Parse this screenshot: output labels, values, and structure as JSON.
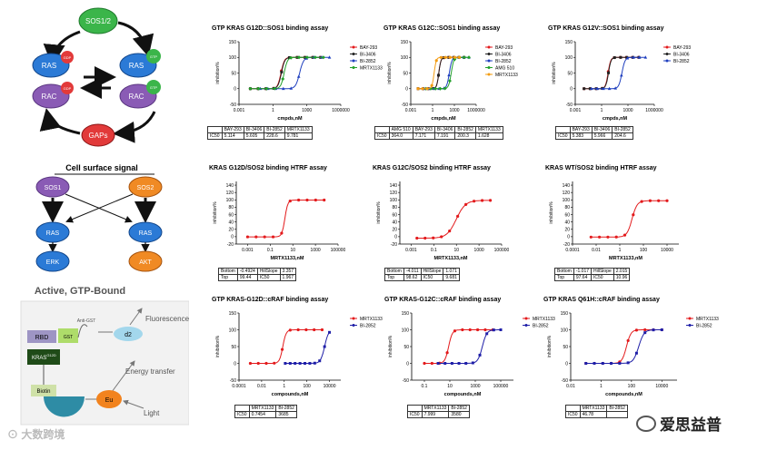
{
  "cycle": {
    "sos": "SOS1/2",
    "ras_gdp": "RAS",
    "ras_gtp": "RAS",
    "rac_gdp": "RAC",
    "rac_gtp": "RAC",
    "gaps": "GAPs",
    "gdp": "GDP",
    "gtp": "GTP"
  },
  "signal": {
    "title": "Cell surface signal",
    "sos1": "SOS1",
    "sos2": "SOS2",
    "ras1": "RAS",
    "ras2": "RAS",
    "erk": "ERK",
    "akt": "AKT"
  },
  "assay": {
    "title": "Active, GTP-Bound",
    "rbd": "RBD",
    "anti_gst": "Anti-GST",
    "gst": "GST",
    "d2": "d2",
    "fluorescence": "Fluorescence",
    "kras": "KRAS",
    "kras_sup": "G12D",
    "energy": "Energy transfer",
    "biotin": "Biotin",
    "eu": "Eu",
    "light": "Light"
  },
  "watermark": {
    "left": "大数跨境",
    "right": "爱思益普"
  },
  "chart_data": [
    {
      "id": "c1",
      "type": "line",
      "title": "GTP KRAS G12D::SOS1 binding assay",
      "xlabel": "cmpds,nM",
      "ylabel": "inhibition%",
      "xscale": "log",
      "xlim": [
        0.001,
        1000000
      ],
      "ylim": [
        -50,
        150
      ],
      "xticks": [
        0.001,
        1,
        1000,
        1000000
      ],
      "xticklabels": [
        "0.001",
        "1",
        "1000",
        "1000000"
      ],
      "yticks": [
        -50,
        0,
        50,
        100,
        150
      ],
      "legend": [
        "BAY-293",
        "BI-3406",
        "BI-2852",
        "MRTX1133"
      ],
      "colors": [
        "#e31a1c",
        "#222222",
        "#1f3fbf",
        "#22a02a"
      ],
      "series": [
        {
          "name": "BAY-293",
          "ic50": 5.114
        },
        {
          "name": "BI-3406",
          "ic50": 5.605
        },
        {
          "name": "BI-2852",
          "ic50": 228.6
        },
        {
          "name": "MRTX1133",
          "ic50": 9.781
        }
      ],
      "table": [
        [
          "",
          "BAY-293",
          "BI-3406",
          "BI-2852",
          "MRTX1133"
        ],
        [
          "IC50",
          "5.114",
          "5.605",
          "228.6",
          "9.781"
        ]
      ]
    },
    {
      "id": "c2",
      "type": "line",
      "title": "GTP KRAS G12C::SOS1 binding assay",
      "xlabel": "cmpds,nM",
      "ylabel": "inhibition%",
      "xscale": "log",
      "xlim": [
        0.001,
        1000000
      ],
      "ylim": [
        -50,
        150
      ],
      "xticks": [
        0.001,
        1,
        1000,
        1000000
      ],
      "xticklabels": [
        "0.001",
        "1",
        "1000",
        "1000000"
      ],
      "yticks": [
        -50,
        0,
        50,
        100,
        150
      ],
      "legend": [
        "BAY-293",
        "BI-3406",
        "BI-2852",
        "AMG 510",
        "MRTX1133"
      ],
      "colors": [
        "#e31a1c",
        "#222222",
        "#1f3fbf",
        "#22a02a",
        "#f39c12"
      ],
      "series": [
        {
          "name": "BAY-293",
          "ic50": 7.171
        },
        {
          "name": "BI-3406",
          "ic50": 7.191
        },
        {
          "name": "BI-2852",
          "ic50": 200.3
        },
        {
          "name": "AMG 510",
          "ic50": 364.0
        },
        {
          "name": "MRTX1133",
          "ic50": 1.628
        }
      ],
      "table": [
        [
          "",
          "AMG 510",
          "BAY-293",
          "BI-3406",
          "BI-2852",
          "MRTX1133"
        ],
        [
          "IC50",
          "364.0",
          "7.171",
          "7.191",
          "200.3",
          "1.628"
        ]
      ]
    },
    {
      "id": "c3",
      "type": "line",
      "title": "GTP KRAS G12V::SOS1 binding assay",
      "xlabel": "cmpds,nM",
      "ylabel": "inhibition%",
      "xscale": "log",
      "xlim": [
        0.001,
        1000000
      ],
      "ylim": [
        -50,
        150
      ],
      "xticks": [
        0.001,
        1,
        1000,
        1000000
      ],
      "xticklabels": [
        "0.001",
        "1",
        "1000",
        "1000000"
      ],
      "yticks": [
        -50,
        0,
        50,
        100,
        150
      ],
      "legend": [
        "BAY-293",
        "BI-3406",
        "BI-2852"
      ],
      "colors": [
        "#e31a1c",
        "#222222",
        "#1f3fbf"
      ],
      "series": [
        {
          "name": "BAY-293",
          "ic50": 5.383
        },
        {
          "name": "BI-3406",
          "ic50": 5.966
        },
        {
          "name": "BI-2852",
          "ic50": 204.6
        }
      ],
      "table": [
        [
          "",
          "BAY-293",
          "BI-3406",
          "BI-2852"
        ],
        [
          "IC50",
          "5.383",
          "5.966",
          "204.6"
        ]
      ]
    },
    {
      "id": "c4",
      "type": "line",
      "title": "KRAS G12D/SOS2 binding HTRF assay",
      "xlabel": "MRTX1133,nM",
      "ylabel": "inhibition%",
      "xscale": "log",
      "xlim": [
        0.0001,
        100000
      ],
      "ylim": [
        -20,
        150
      ],
      "xticks": [
        0.001,
        0.1,
        10,
        1000,
        100000
      ],
      "xticklabels": [
        "0.001",
        "0.1",
        "10",
        "1000",
        "100000"
      ],
      "yticks": [
        -20,
        0,
        20,
        40,
        60,
        80,
        100,
        120,
        140
      ],
      "legend": [],
      "colors": [
        "#e31a1c"
      ],
      "series": [
        {
          "name": "MRTX1133",
          "ic50": 1.967,
          "bottom": -0.4924,
          "top": 99.44,
          "hill": 3.357
        }
      ],
      "table": [
        [
          "Bottom",
          "-0.4924",
          "HillSlope",
          "3.357"
        ],
        [
          "Top",
          "99.44",
          "IC50",
          "1.967"
        ]
      ]
    },
    {
      "id": "c5",
      "type": "line",
      "title": "KRAS G12C/SOS2 binding HTRF assay",
      "xlabel": "MRTX1133,nM",
      "ylabel": "inhibition%",
      "xscale": "log",
      "xlim": [
        0.0001,
        100000
      ],
      "ylim": [
        -20,
        150
      ],
      "xticks": [
        0.001,
        0.1,
        10,
        1000,
        100000
      ],
      "xticklabels": [
        "0.001",
        "0.1",
        "10",
        "1000",
        "100000"
      ],
      "yticks": [
        -20,
        0,
        20,
        40,
        60,
        80,
        100,
        120,
        140
      ],
      "legend": [],
      "colors": [
        "#e31a1c"
      ],
      "series": [
        {
          "name": "MRTX1133",
          "ic50": 9.681,
          "bottom": -4.011,
          "top": 98.62,
          "hill": 1.071
        }
      ],
      "table": [
        [
          "Bottom",
          "-4.011",
          "HillSlope",
          "1.071"
        ],
        [
          "Top",
          "98.62",
          "IC50",
          "9.681"
        ]
      ]
    },
    {
      "id": "c6",
      "type": "line",
      "title": "KRAS WT/SOS2 binding HTRF assay",
      "xlabel": "MRTX1133,nM",
      "ylabel": "inhibition%",
      "xscale": "log",
      "xlim": [
        0.0001,
        100000
      ],
      "ylim": [
        -20,
        150
      ],
      "xticks": [
        0.0001,
        0.01,
        1,
        100,
        10000
      ],
      "xticklabels": [
        "0.0001",
        "0.01",
        "1",
        "100",
        "10000"
      ],
      "yticks": [
        -20,
        0,
        20,
        40,
        60,
        80,
        100,
        120,
        140
      ],
      "legend": [],
      "colors": [
        "#e31a1c"
      ],
      "series": [
        {
          "name": "MRTX1133",
          "ic50": 10.96,
          "bottom": -1.017,
          "top": 97.64,
          "hill": 2.015
        }
      ],
      "table": [
        [
          "Bottom",
          "-1.017",
          "HillSlope",
          "2.015"
        ],
        [
          "Top",
          "97.64",
          "IC50",
          "10.96"
        ]
      ]
    },
    {
      "id": "c7",
      "type": "line",
      "title": "GTP KRAS-G12D::cRAF binding assay",
      "xlabel": "compounds,nM",
      "ylabel": "inhibition%",
      "xscale": "log",
      "xlim": [
        0.0001,
        100000
      ],
      "ylim": [
        -50,
        150
      ],
      "xticks": [
        0.0001,
        0.01,
        1,
        100,
        10000
      ],
      "xticklabels": [
        "0.0001",
        "0.01",
        "1",
        "100",
        "10000"
      ],
      "yticks": [
        -50,
        0,
        50,
        100,
        150
      ],
      "legend": [
        "MRTX1133",
        "BI-2852"
      ],
      "colors": [
        "#e31a1c",
        "#1f1fa8"
      ],
      "series": [
        {
          "name": "MRTX1133",
          "ic50": 0.7454
        },
        {
          "name": "BI-2852",
          "ic50": 3685
        }
      ],
      "table": [
        [
          "",
          "MRTX1133",
          "BI-2852"
        ],
        [
          "IC50",
          "0.7454",
          "3685"
        ]
      ]
    },
    {
      "id": "c8",
      "type": "line",
      "title": "GTP KRAS-G12C::cRAF binding assay",
      "xlabel": "compounds,nM",
      "ylabel": "inhibition%",
      "xscale": "log",
      "xlim": [
        0.01,
        1000000
      ],
      "ylim": [
        -50,
        150
      ],
      "xticks": [
        0.1,
        10,
        1000,
        100000
      ],
      "xticklabels": [
        "0.1",
        "10",
        "1000",
        "100000"
      ],
      "yticks": [
        -50,
        0,
        50,
        100,
        150
      ],
      "legend": [
        "MRTX1133",
        "BI-2852"
      ],
      "colors": [
        "#e31a1c",
        "#1f1fa8"
      ],
      "series": [
        {
          "name": "MRTX1133",
          "ic50": 7.999
        },
        {
          "name": "BI-2852",
          "ic50": 3580
        }
      ],
      "table": [
        [
          "",
          "MRTX1133",
          "BI-2852"
        ],
        [
          "IC50",
          "7.999",
          "3580"
        ]
      ]
    },
    {
      "id": "c9",
      "type": "line",
      "title": "GTP KRAS Q61H::cRAF binding assay",
      "xlabel": "compounds,nM",
      "ylabel": "inhibition%",
      "xscale": "log",
      "xlim": [
        0.01,
        100000
      ],
      "ylim": [
        -50,
        150
      ],
      "xticks": [
        0.01,
        1,
        100,
        10000
      ],
      "xticklabels": [
        "0.01",
        "1",
        "100",
        "10000"
      ],
      "yticks": [
        -50,
        0,
        50,
        100,
        150
      ],
      "legend": [
        "MRTX1133",
        "BI-2852"
      ],
      "colors": [
        "#e31a1c",
        "#1f1fa8"
      ],
      "series": [
        {
          "name": "MRTX1133",
          "ic50": 46.78
        },
        {
          "name": "BI-2852",
          "ic50": ""
        }
      ],
      "table": [
        [
          "",
          "MRTX1133",
          "BI-2852"
        ],
        [
          "IC50",
          "46.78",
          ""
        ]
      ]
    }
  ]
}
